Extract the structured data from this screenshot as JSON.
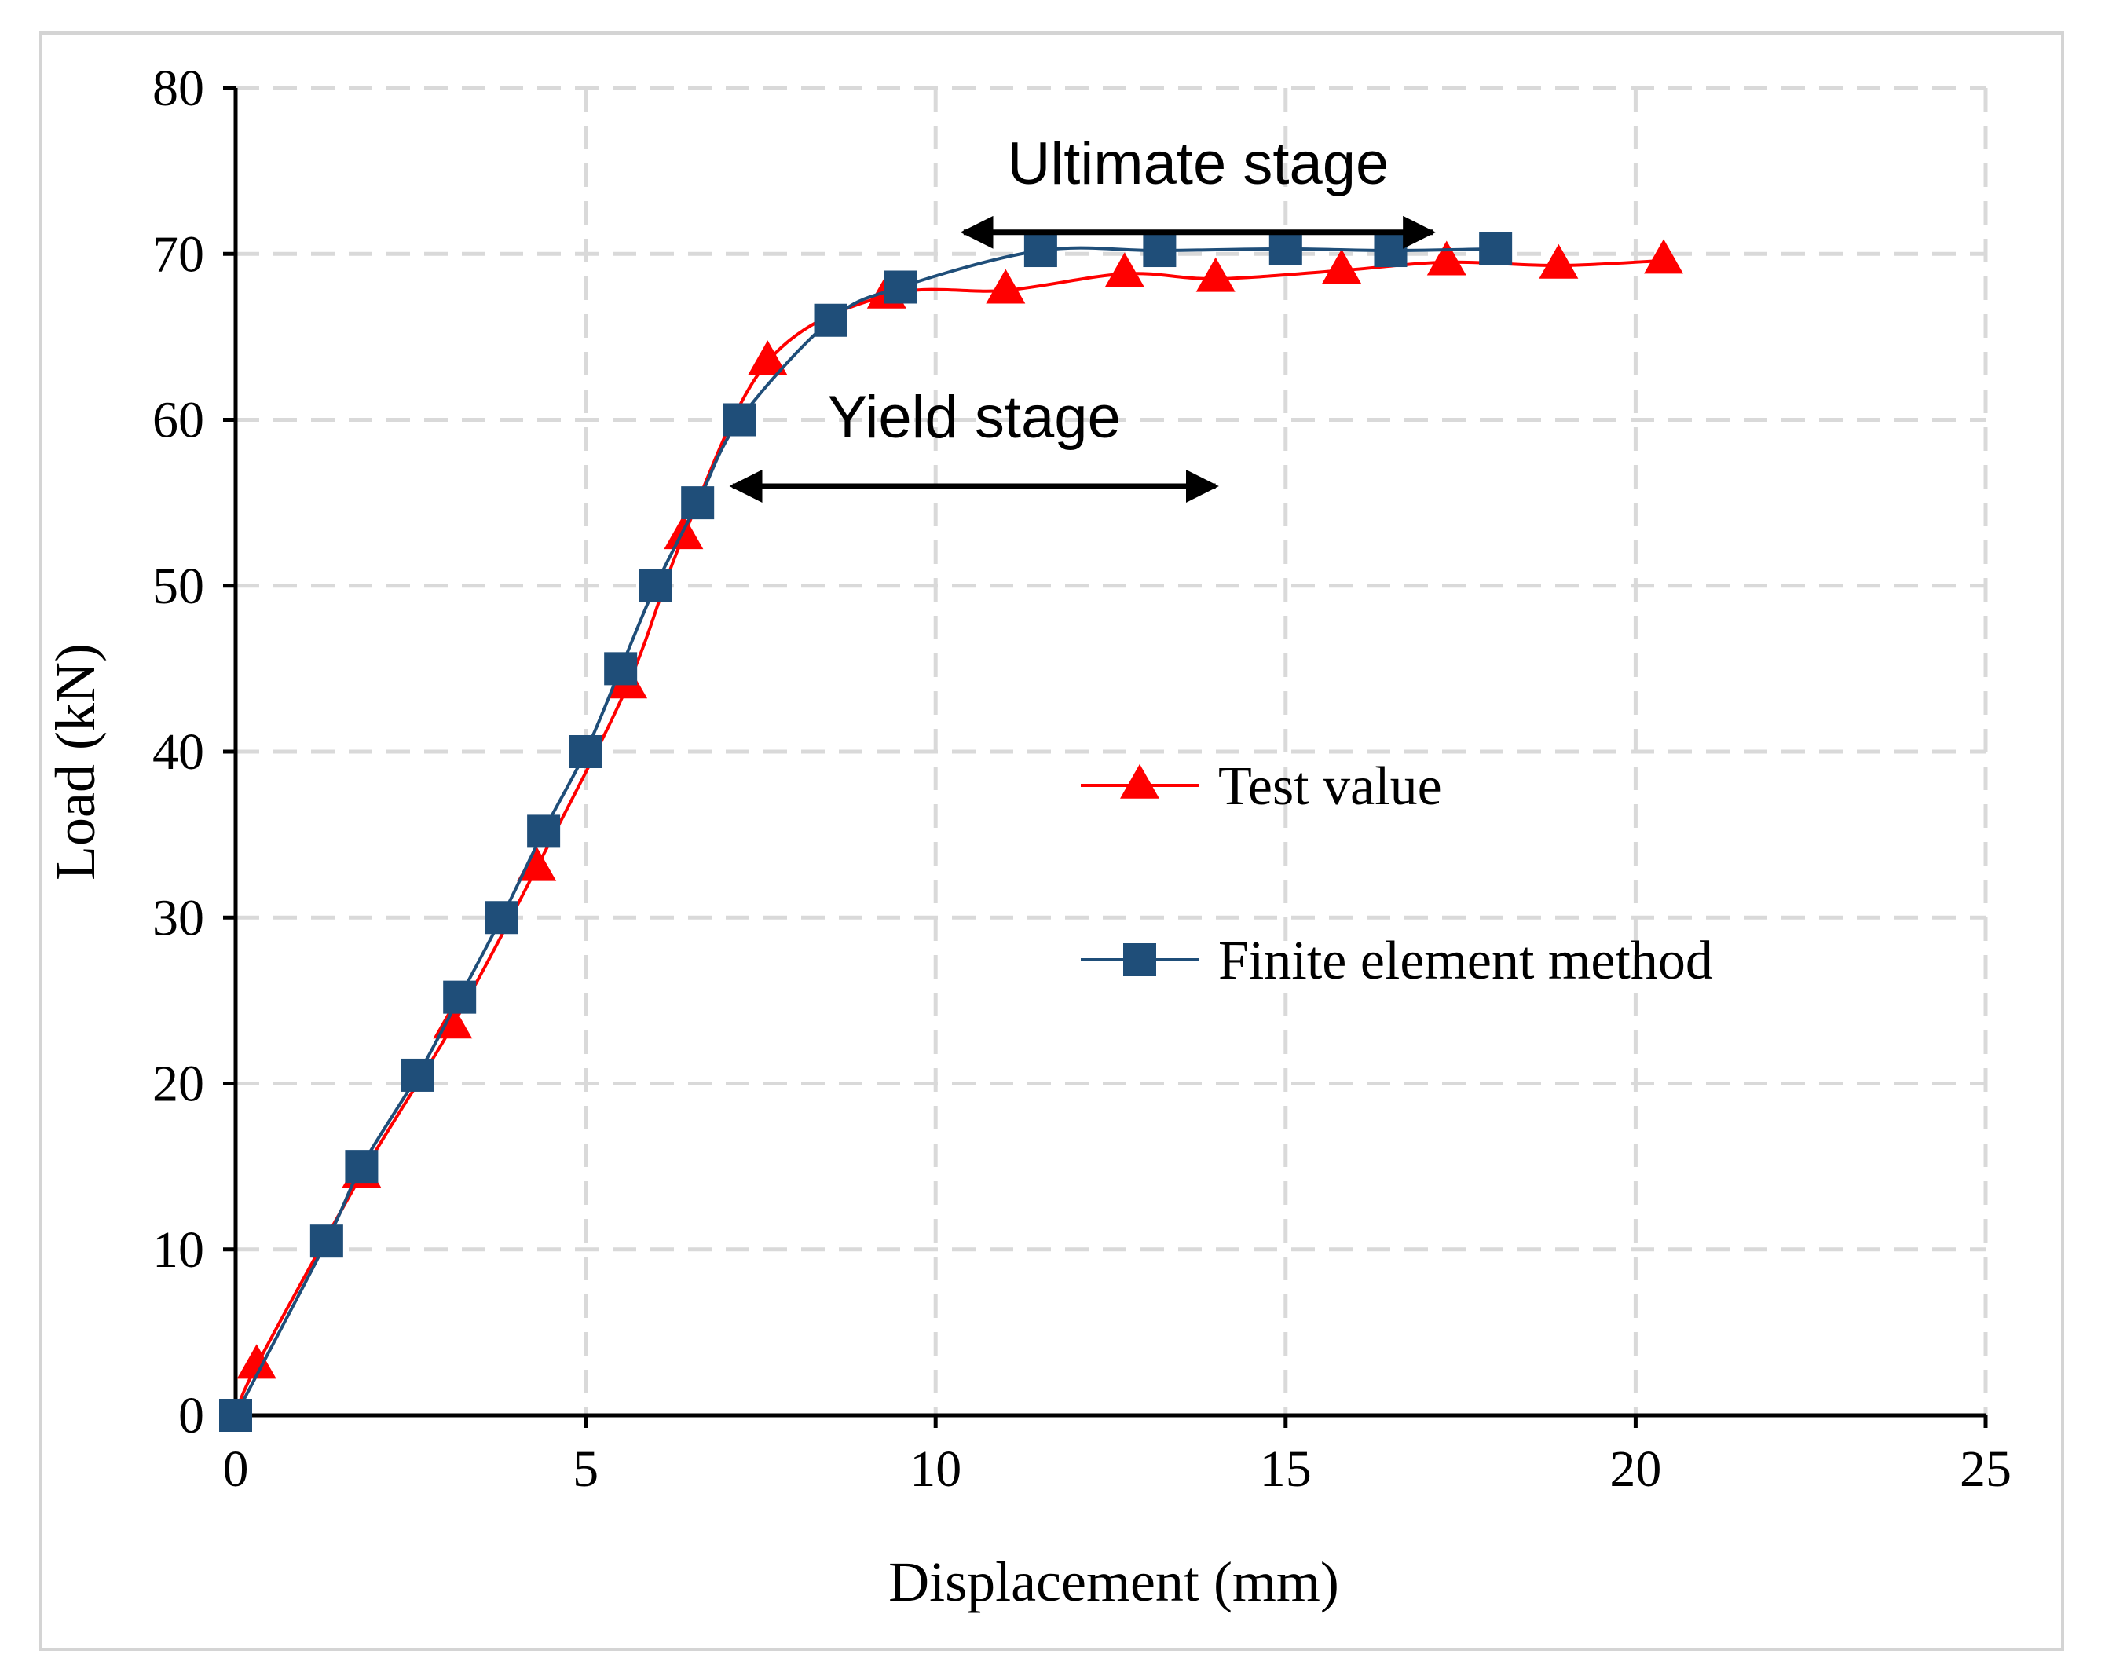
{
  "colors": {
    "test": "#ff0000",
    "fem": "#1f4e79",
    "grid": "#d9d9d9",
    "axis": "#000000"
  },
  "chart_data": {
    "type": "line",
    "title": "",
    "xlabel": "Displacement (mm)",
    "ylabel": "Load (kN)",
    "xlim": [
      0,
      25
    ],
    "ylim": [
      0,
      80
    ],
    "xticks": [
      0,
      5,
      10,
      15,
      20,
      25
    ],
    "yticks": [
      0,
      10,
      20,
      30,
      40,
      50,
      60,
      70,
      80
    ],
    "xtick_labels": [
      "0",
      "5",
      "10",
      "15",
      "20",
      "25"
    ],
    "ytick_labels": [
      "0",
      "10",
      "20",
      "30",
      "40",
      "50",
      "60",
      "70",
      "80"
    ],
    "grid": true,
    "legend_position": "center-right",
    "series": [
      {
        "name": "Test value",
        "marker": "triangle",
        "color": "#ff0000",
        "x": [
          0.3,
          1.8,
          3.1,
          4.3,
          5.6,
          6.4,
          7.6,
          9.3,
          11.0,
          12.7,
          14.0,
          15.8,
          17.3,
          18.9,
          20.4
        ],
        "y": [
          3,
          14.5,
          23.5,
          33,
          44,
          53,
          63.5,
          67.5,
          67.8,
          68.8,
          68.5,
          69,
          69.5,
          69.3,
          69.6
        ]
      },
      {
        "name": "Finite element method",
        "marker": "square",
        "color": "#1f4e79",
        "x": [
          0,
          1.3,
          1.8,
          2.6,
          3.2,
          3.8,
          4.4,
          5.0,
          5.5,
          6.0,
          6.6,
          7.2,
          8.5,
          9.5,
          11.5,
          13.2,
          15.0,
          16.5,
          18.0
        ],
        "y": [
          0,
          10.5,
          15,
          20.5,
          25.2,
          30,
          35.2,
          40,
          45,
          50,
          55,
          60,
          66,
          68,
          70.2,
          70.2,
          70.3,
          70.2,
          70.3
        ]
      }
    ],
    "annotations": [
      {
        "text": "Ultimate stage",
        "arrow_from": [
          10.4,
          71.3
        ],
        "arrow_to": [
          17.1,
          71.3
        ]
      },
      {
        "text": "Yield stage",
        "arrow_from": [
          7.1,
          56.0
        ],
        "arrow_to": [
          14.0,
          56.0
        ]
      }
    ]
  }
}
